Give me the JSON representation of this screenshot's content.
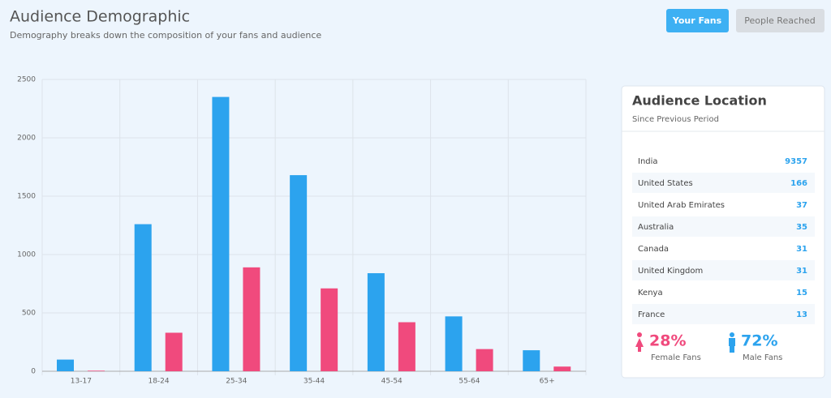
{
  "header": {
    "title": "Audience Demographic",
    "subtitle": "Demography breaks down the composition of your fans and audience"
  },
  "buttons": [
    "Your Fans",
    "People Reached"
  ],
  "chart_data": {
    "type": "bar",
    "categories": [
      "13-17",
      "18-24",
      "25-34",
      "35-44",
      "45-54",
      "55-64",
      "65+"
    ],
    "series": [
      {
        "color": "#2ca3ee",
        "values": [
          100,
          1260,
          2350,
          1680,
          840,
          470,
          180
        ]
      },
      {
        "color": "#f04a7d",
        "values": [
          5,
          330,
          890,
          710,
          420,
          190,
          40
        ]
      }
    ],
    "ylim": [
      0,
      2500
    ],
    "yticks": [
      0,
      500,
      1000,
      1500,
      2000,
      2500
    ],
    "grid": true
  },
  "location": {
    "title": "Audience Location",
    "subtitle": "Since Previous Period",
    "rows": [
      [
        "India",
        "9357"
      ],
      [
        "United States",
        "166"
      ],
      [
        "United Arab Emirates",
        "37"
      ],
      [
        "Australia",
        "35"
      ],
      [
        "Canada",
        "31"
      ],
      [
        "United Kingdom",
        "31"
      ],
      [
        "Kenya",
        "15"
      ],
      [
        "France",
        "13"
      ]
    ],
    "stats": [
      {
        "value": "28%",
        "label": "Female Fans"
      },
      {
        "value": "72%",
        "label": "Male Fans"
      }
    ]
  }
}
